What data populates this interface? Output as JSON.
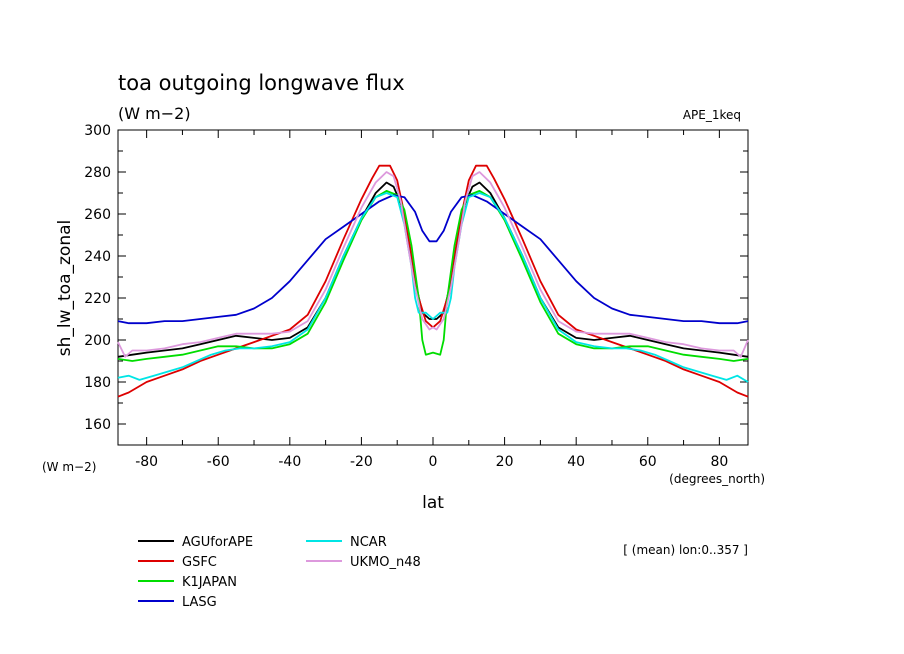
{
  "chart_data": {
    "type": "line",
    "title": "toa outgoing longwave flux",
    "subtitle": "(W m−2)",
    "experiment": "APE_1keq",
    "ylabel": "sh_lw_toa_zonal",
    "y_units": "(W m−2)",
    "xlabel": "lat",
    "x_units": "(degrees_north)",
    "annotation": "[ (mean) lon:0..357 ]",
    "xlim": [
      -88,
      88
    ],
    "ylim": [
      150,
      300
    ],
    "x_ticks": [
      -80,
      -60,
      -40,
      -20,
      0,
      20,
      40,
      60,
      80
    ],
    "y_ticks": [
      160,
      180,
      200,
      220,
      240,
      260,
      280,
      300
    ],
    "grid": false,
    "legend_position": "bottom-left",
    "series": [
      {
        "name": "AGUforAPE",
        "color": "#000000",
        "points": [
          [
            -88,
            192
          ],
          [
            -84,
            193
          ],
          [
            -80,
            194
          ],
          [
            -75,
            195
          ],
          [
            -70,
            196
          ],
          [
            -65,
            198
          ],
          [
            -60,
            200
          ],
          [
            -55,
            202
          ],
          [
            -50,
            201
          ],
          [
            -45,
            200
          ],
          [
            -40,
            201
          ],
          [
            -35,
            206
          ],
          [
            -30,
            220
          ],
          [
            -25,
            240
          ],
          [
            -20,
            258
          ],
          [
            -16,
            270
          ],
          [
            -13,
            275
          ],
          [
            -11,
            273
          ],
          [
            -9,
            265
          ],
          [
            -7,
            248
          ],
          [
            -5,
            228
          ],
          [
            -3,
            213
          ],
          [
            -1,
            210
          ],
          [
            0,
            210
          ],
          [
            1,
            210
          ],
          [
            3,
            213
          ],
          [
            5,
            228
          ],
          [
            7,
            248
          ],
          [
            9,
            265
          ],
          [
            11,
            273
          ],
          [
            13,
            275
          ],
          [
            16,
            270
          ],
          [
            20,
            258
          ],
          [
            25,
            240
          ],
          [
            30,
            220
          ],
          [
            35,
            206
          ],
          [
            40,
            201
          ],
          [
            45,
            200
          ],
          [
            50,
            201
          ],
          [
            55,
            202
          ],
          [
            60,
            200
          ],
          [
            65,
            198
          ],
          [
            70,
            196
          ],
          [
            75,
            195
          ],
          [
            80,
            194
          ],
          [
            84,
            193
          ],
          [
            88,
            192
          ]
        ]
      },
      {
        "name": "GSFC",
        "color": "#dd0000",
        "points": [
          [
            -88,
            173
          ],
          [
            -85,
            175
          ],
          [
            -80,
            180
          ],
          [
            -75,
            183
          ],
          [
            -70,
            186
          ],
          [
            -65,
            190
          ],
          [
            -60,
            193
          ],
          [
            -55,
            196
          ],
          [
            -50,
            199
          ],
          [
            -45,
            202
          ],
          [
            -40,
            205
          ],
          [
            -35,
            212
          ],
          [
            -30,
            228
          ],
          [
            -25,
            248
          ],
          [
            -20,
            267
          ],
          [
            -17,
            277
          ],
          [
            -15,
            283
          ],
          [
            -12,
            283
          ],
          [
            -10,
            276
          ],
          [
            -8,
            260
          ],
          [
            -6,
            240
          ],
          [
            -4,
            220
          ],
          [
            -2,
            209
          ],
          [
            0,
            206
          ],
          [
            2,
            209
          ],
          [
            4,
            220
          ],
          [
            6,
            240
          ],
          [
            8,
            260
          ],
          [
            10,
            276
          ],
          [
            12,
            283
          ],
          [
            15,
            283
          ],
          [
            17,
            277
          ],
          [
            20,
            267
          ],
          [
            25,
            248
          ],
          [
            30,
            228
          ],
          [
            35,
            212
          ],
          [
            40,
            205
          ],
          [
            45,
            202
          ],
          [
            50,
            199
          ],
          [
            55,
            196
          ],
          [
            60,
            193
          ],
          [
            65,
            190
          ],
          [
            70,
            186
          ],
          [
            75,
            183
          ],
          [
            80,
            180
          ],
          [
            85,
            175
          ],
          [
            88,
            173
          ]
        ]
      },
      {
        "name": "K1JAPAN",
        "color": "#00dd00",
        "points": [
          [
            -88,
            191
          ],
          [
            -84,
            190
          ],
          [
            -80,
            191
          ],
          [
            -75,
            192
          ],
          [
            -70,
            193
          ],
          [
            -65,
            195
          ],
          [
            -60,
            197
          ],
          [
            -55,
            197
          ],
          [
            -50,
            196
          ],
          [
            -45,
            196
          ],
          [
            -40,
            198
          ],
          [
            -35,
            203
          ],
          [
            -30,
            218
          ],
          [
            -25,
            238
          ],
          [
            -20,
            257
          ],
          [
            -16,
            268
          ],
          [
            -13,
            271
          ],
          [
            -10,
            269
          ],
          [
            -8,
            262
          ],
          [
            -6,
            245
          ],
          [
            -4,
            220
          ],
          [
            -3,
            200
          ],
          [
            -2,
            193
          ],
          [
            0,
            194
          ],
          [
            2,
            193
          ],
          [
            3,
            200
          ],
          [
            4,
            220
          ],
          [
            6,
            245
          ],
          [
            8,
            262
          ],
          [
            10,
            269
          ],
          [
            13,
            271
          ],
          [
            16,
            268
          ],
          [
            20,
            257
          ],
          [
            25,
            238
          ],
          [
            30,
            218
          ],
          [
            35,
            203
          ],
          [
            40,
            198
          ],
          [
            45,
            196
          ],
          [
            50,
            196
          ],
          [
            55,
            197
          ],
          [
            60,
            197
          ],
          [
            65,
            195
          ],
          [
            70,
            193
          ],
          [
            75,
            192
          ],
          [
            80,
            191
          ],
          [
            84,
            190
          ],
          [
            88,
            191
          ]
        ]
      },
      {
        "name": "LASG",
        "color": "#0000cc",
        "points": [
          [
            -88,
            209
          ],
          [
            -85,
            208
          ],
          [
            -80,
            208
          ],
          [
            -75,
            209
          ],
          [
            -70,
            209
          ],
          [
            -65,
            210
          ],
          [
            -60,
            211
          ],
          [
            -55,
            212
          ],
          [
            -50,
            215
          ],
          [
            -45,
            220
          ],
          [
            -40,
            228
          ],
          [
            -35,
            238
          ],
          [
            -30,
            248
          ],
          [
            -25,
            254
          ],
          [
            -20,
            260
          ],
          [
            -15,
            266
          ],
          [
            -11,
            269
          ],
          [
            -8,
            268
          ],
          [
            -5,
            261
          ],
          [
            -3,
            252
          ],
          [
            -1,
            247
          ],
          [
            0,
            247
          ],
          [
            1,
            247
          ],
          [
            3,
            252
          ],
          [
            5,
            261
          ],
          [
            8,
            268
          ],
          [
            11,
            269
          ],
          [
            15,
            266
          ],
          [
            20,
            260
          ],
          [
            25,
            254
          ],
          [
            30,
            248
          ],
          [
            35,
            238
          ],
          [
            40,
            228
          ],
          [
            45,
            220
          ],
          [
            50,
            215
          ],
          [
            55,
            212
          ],
          [
            60,
            211
          ],
          [
            65,
            210
          ],
          [
            70,
            209
          ],
          [
            75,
            209
          ],
          [
            80,
            208
          ],
          [
            85,
            208
          ],
          [
            88,
            209
          ]
        ]
      },
      {
        "name": "NCAR",
        "color": "#00e5e5",
        "points": [
          [
            -88,
            182
          ],
          [
            -85,
            183
          ],
          [
            -82,
            181
          ],
          [
            -78,
            183
          ],
          [
            -74,
            185
          ],
          [
            -70,
            187
          ],
          [
            -66,
            190
          ],
          [
            -62,
            193
          ],
          [
            -58,
            195
          ],
          [
            -54,
            196
          ],
          [
            -50,
            196
          ],
          [
            -45,
            197
          ],
          [
            -40,
            199
          ],
          [
            -35,
            205
          ],
          [
            -30,
            220
          ],
          [
            -25,
            240
          ],
          [
            -20,
            258
          ],
          [
            -16,
            268
          ],
          [
            -13,
            270
          ],
          [
            -10,
            268
          ],
          [
            -8,
            255
          ],
          [
            -6,
            235
          ],
          [
            -5,
            220
          ],
          [
            -4,
            213
          ],
          [
            -2,
            213
          ],
          [
            0,
            210
          ],
          [
            2,
            213
          ],
          [
            4,
            213
          ],
          [
            5,
            220
          ],
          [
            6,
            235
          ],
          [
            8,
            255
          ],
          [
            10,
            268
          ],
          [
            13,
            270
          ],
          [
            16,
            268
          ],
          [
            20,
            258
          ],
          [
            25,
            240
          ],
          [
            30,
            220
          ],
          [
            35,
            205
          ],
          [
            40,
            199
          ],
          [
            45,
            197
          ],
          [
            50,
            196
          ],
          [
            54,
            196
          ],
          [
            58,
            195
          ],
          [
            62,
            193
          ],
          [
            66,
            190
          ],
          [
            70,
            187
          ],
          [
            74,
            185
          ],
          [
            78,
            183
          ],
          [
            82,
            181
          ],
          [
            85,
            183
          ],
          [
            88,
            180
          ]
        ]
      },
      {
        "name": "UKMO_n48",
        "color": "#dd99dd",
        "points": [
          [
            -88,
            199
          ],
          [
            -86,
            192
          ],
          [
            -84,
            195
          ],
          [
            -80,
            195
          ],
          [
            -75,
            196
          ],
          [
            -70,
            198
          ],
          [
            -65,
            199
          ],
          [
            -60,
            201
          ],
          [
            -55,
            203
          ],
          [
            -50,
            203
          ],
          [
            -45,
            203
          ],
          [
            -40,
            204
          ],
          [
            -35,
            209
          ],
          [
            -30,
            224
          ],
          [
            -25,
            244
          ],
          [
            -20,
            263
          ],
          [
            -16,
            275
          ],
          [
            -13,
            280
          ],
          [
            -11,
            278
          ],
          [
            -9,
            266
          ],
          [
            -7,
            245
          ],
          [
            -5,
            225
          ],
          [
            -3,
            210
          ],
          [
            -1,
            205
          ],
          [
            0,
            206
          ],
          [
            1,
            205
          ],
          [
            3,
            210
          ],
          [
            5,
            225
          ],
          [
            7,
            245
          ],
          [
            9,
            266
          ],
          [
            11,
            278
          ],
          [
            13,
            280
          ],
          [
            16,
            275
          ],
          [
            20,
            263
          ],
          [
            25,
            244
          ],
          [
            30,
            224
          ],
          [
            35,
            209
          ],
          [
            40,
            204
          ],
          [
            45,
            203
          ],
          [
            50,
            203
          ],
          [
            55,
            203
          ],
          [
            60,
            201
          ],
          [
            65,
            199
          ],
          [
            70,
            198
          ],
          [
            75,
            196
          ],
          [
            80,
            195
          ],
          [
            84,
            195
          ],
          [
            86,
            192
          ],
          [
            88,
            200
          ]
        ]
      }
    ]
  }
}
